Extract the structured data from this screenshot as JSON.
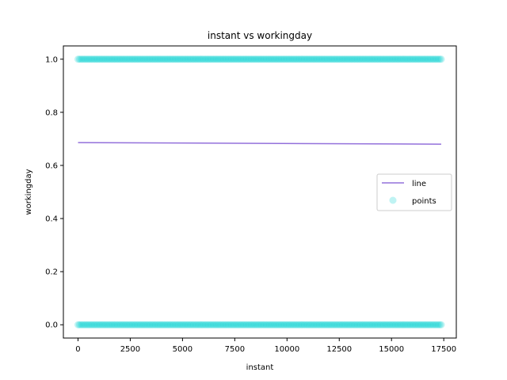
{
  "chart_data": {
    "type": "scatter",
    "title": "instant vs workingday",
    "xlabel": "instant",
    "ylabel": "workingday",
    "xlim": [
      -700,
      18100
    ],
    "ylim": [
      -0.05,
      1.05
    ],
    "xticks": [
      0,
      2500,
      5000,
      7500,
      10000,
      12500,
      15000,
      17500
    ],
    "xtick_labels": [
      "0",
      "2500",
      "5000",
      "7500",
      "10000",
      "12500",
      "15000",
      "17500"
    ],
    "yticks": [
      0.0,
      0.2,
      0.4,
      0.6,
      0.8,
      1.0
    ],
    "ytick_labels": [
      "0.0",
      "0.2",
      "0.4",
      "0.6",
      "0.8",
      "1.0"
    ],
    "grid": false,
    "legend_position": "center-right",
    "series": [
      {
        "name": "line",
        "kind": "line",
        "color": "#9370db",
        "x": [
          1,
          17379
        ],
        "y": [
          0.686,
          0.68
        ]
      },
      {
        "name": "points",
        "kind": "scatter",
        "color": "#00ced1",
        "x_range": [
          1,
          17379
        ],
        "y_levels": [
          0,
          1
        ]
      }
    ]
  }
}
